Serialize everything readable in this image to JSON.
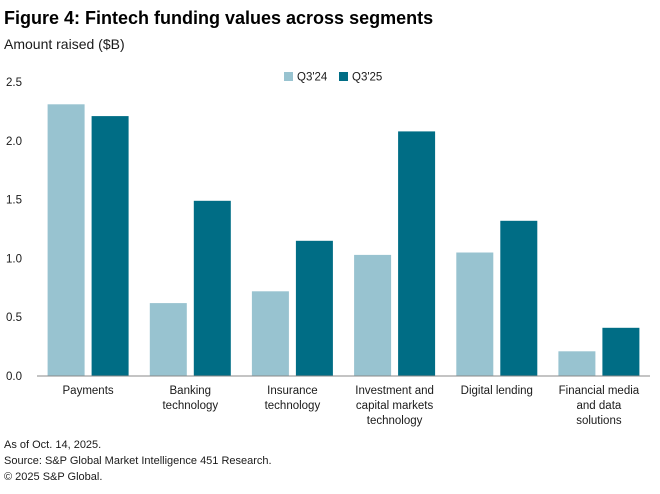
{
  "chart_data": {
    "type": "bar",
    "title": "Figure 4: Fintech funding values across segments",
    "ylabel": "Amount raised ($B)",
    "xlabel": "",
    "ylim": [
      0,
      2.5
    ],
    "yticks": [
      "0.0",
      "0.5",
      "1.0",
      "1.5",
      "2.0",
      "2.5"
    ],
    "grid": false,
    "legend_position": "top-center",
    "categories": [
      [
        "Payments"
      ],
      [
        "Banking",
        "technology"
      ],
      [
        "Insurance",
        "technology"
      ],
      [
        "Investment and",
        "capital markets",
        "technology"
      ],
      [
        "Digital lending"
      ],
      [
        "Financial media",
        "and data",
        "solutions"
      ]
    ],
    "series": [
      {
        "name": "Q3'24",
        "color": "#98c3d0",
        "values": [
          2.31,
          0.62,
          0.72,
          1.03,
          1.05,
          0.21
        ]
      },
      {
        "name": "Q3'25",
        "color": "#006d85",
        "values": [
          2.21,
          1.49,
          1.15,
          2.08,
          1.32,
          0.41
        ]
      }
    ]
  },
  "footer": {
    "as_of": "As of Oct. 14, 2025.",
    "source": "Source: S&P Global Market Intelligence 451 Research.",
    "copyright": "© 2025 S&P Global."
  }
}
